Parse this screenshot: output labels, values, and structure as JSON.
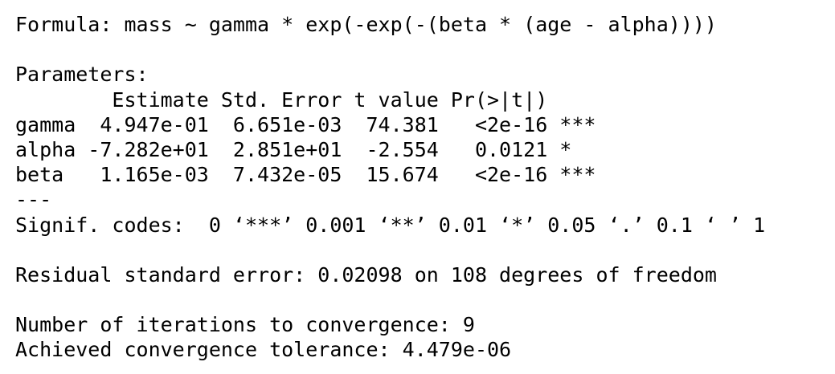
{
  "output": {
    "formula": "Formula: mass ~ gamma * exp(-exp(-(beta * (age - alpha))))",
    "parameters_heading": "Parameters:",
    "table_header": "        Estimate Std. Error t value Pr(>|t|)    ",
    "rows": [
      "gamma  4.947e-01  6.651e-03  74.381   <2e-16 ***",
      "alpha -7.282e+01  2.851e+01  -2.554   0.0121 *  ",
      "beta   1.165e-03  7.432e-05  15.674   <2e-16 ***"
    ],
    "separator": "---",
    "signif_codes": "Signif. codes:  0 ‘***’ 0.001 ‘**’ 0.01 ‘*’ 0.05 ‘.’ 0.1 ‘ ’ 1",
    "residual_se": "Residual standard error: 0.02098 on 108 degrees of freedom",
    "iterations": "Number of iterations to convergence: 9",
    "tolerance": "Achieved convergence tolerance: 4.479e-06"
  }
}
